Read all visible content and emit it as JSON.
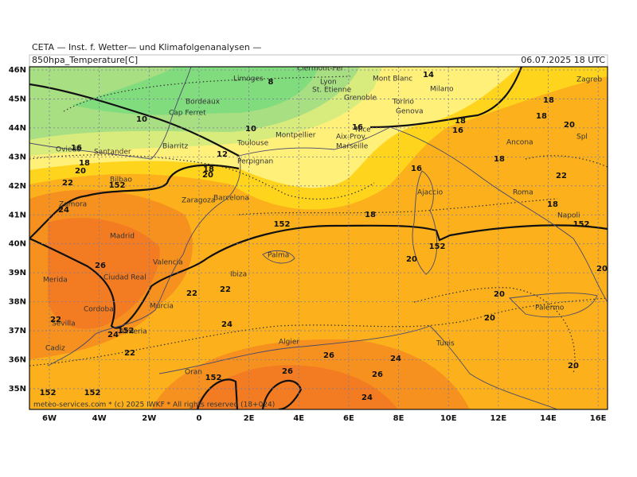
{
  "header": {
    "title": "CETA — Inst. f. Wetter— und Klimafolgenanalysen —",
    "variable": "850hpa_Temperature[C]",
    "datetime": "06.07.2025 18 UTC"
  },
  "footer": "meteo-services.com * (c) 2025 IWKF * All rights reserved (18+024)",
  "axes": {
    "lat": [
      "46N",
      "45N",
      "44N",
      "43N",
      "42N",
      "41N",
      "40N",
      "39N",
      "38N",
      "37N",
      "36N",
      "35N"
    ],
    "lon": [
      "6W",
      "4W",
      "2W",
      "0",
      "2E",
      "4E",
      "6E",
      "8E",
      "10E",
      "12E",
      "14E",
      "16E"
    ]
  },
  "cities": [
    "Clermont-Fer",
    "Limoges",
    "Lyon",
    "St. Etienne",
    "Mont Blanc",
    "Milano",
    "Bordeaux",
    "Torino",
    "Genova",
    "Cap Ferret",
    "Grenoble",
    "Montpellier",
    "Toulouse",
    "Aix-Prov.",
    "Nice",
    "Marseille",
    "Biarritz",
    "Oviedo",
    "Santander",
    "Perpignan",
    "Ancona",
    "Spl",
    "Zagreb",
    "Bilbao",
    "Ajaccio",
    "Zaragoza",
    "Barcelona",
    "Roma",
    "Zamora",
    "Napoli",
    "Madrid",
    "Palma",
    "Valencia",
    "Merida",
    "Ciudad Real",
    "Ibiza",
    "Murcia",
    "Palermo",
    "Cordoba",
    "Sevilla",
    "Almeria",
    "Cadiz",
    "Algier",
    "Tunis",
    "Oran"
  ],
  "contour_labels": [
    "8",
    "14",
    "10",
    "10",
    "16",
    "16",
    "18",
    "18",
    "18",
    "20",
    "12",
    "18",
    "20",
    "16",
    "18",
    "20",
    "22",
    "152",
    "16",
    "18",
    "22",
    "18",
    "18",
    "152",
    "152",
    "20",
    "152",
    "20",
    "26",
    "24",
    "22",
    "22",
    "20",
    "20",
    "22",
    "24",
    "152",
    "24",
    "22",
    "26",
    "24",
    "26",
    "20",
    "26",
    "152",
    "152",
    "152",
    "24"
  ]
}
